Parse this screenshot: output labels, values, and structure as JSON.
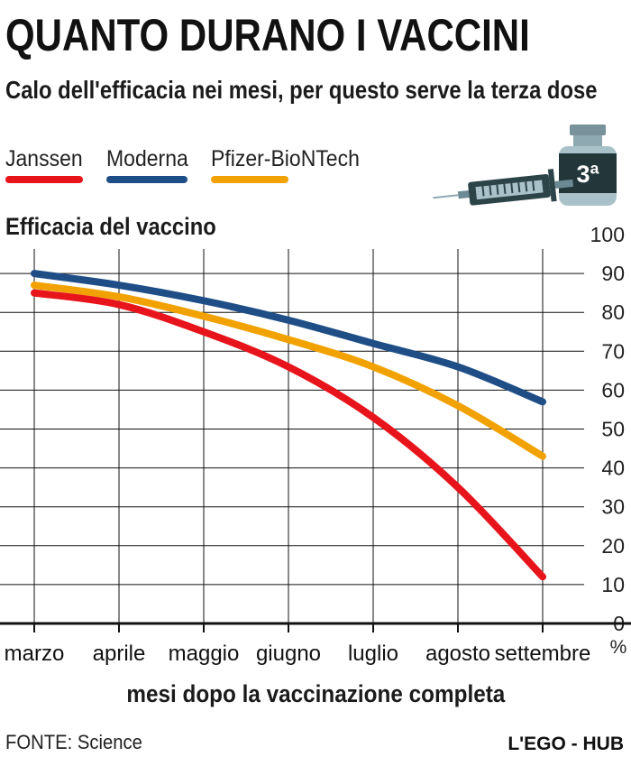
{
  "title": "QUANTO DURANO I VACCINI",
  "subtitle": "Calo dell'efficacia nei mesi, per questo serve la terza dose",
  "legend": [
    {
      "label": "Janssen",
      "color": "#e8141b"
    },
    {
      "label": "Moderna",
      "color": "#1f4e87"
    },
    {
      "label": "Pfizer-BioNTech",
      "color": "#f2a200"
    }
  ],
  "badge": {
    "text": "3ª",
    "icon": "syringe-vial-icon"
  },
  "chart_data": {
    "type": "line",
    "title": "Efficacia del vaccino",
    "ylabel": "Efficacia del vaccino",
    "yunit": "%",
    "xlabel": "mesi dopo la vaccinazione completa",
    "categories": [
      "marzo",
      "aprile",
      "maggio",
      "giugno",
      "luglio",
      "agosto",
      "settembre"
    ],
    "ylim": [
      0,
      100
    ],
    "yticks": [
      "0",
      "10",
      "20",
      "30",
      "40",
      "50",
      "60",
      "70",
      "80",
      "90",
      "100"
    ],
    "grid": true,
    "series": [
      {
        "name": "Moderna",
        "color": "#1f4e87",
        "values": [
          90,
          87,
          83,
          78,
          72,
          66,
          57
        ]
      },
      {
        "name": "Pfizer-BioNTech",
        "color": "#f2a200",
        "values": [
          87,
          84,
          79,
          73,
          66,
          56,
          43
        ]
      },
      {
        "name": "Janssen",
        "color": "#e8141b",
        "values": [
          85,
          82,
          75,
          66,
          53,
          35,
          12
        ]
      }
    ]
  },
  "source": "FONTE: Science",
  "credit": "L'EGO - HUB"
}
